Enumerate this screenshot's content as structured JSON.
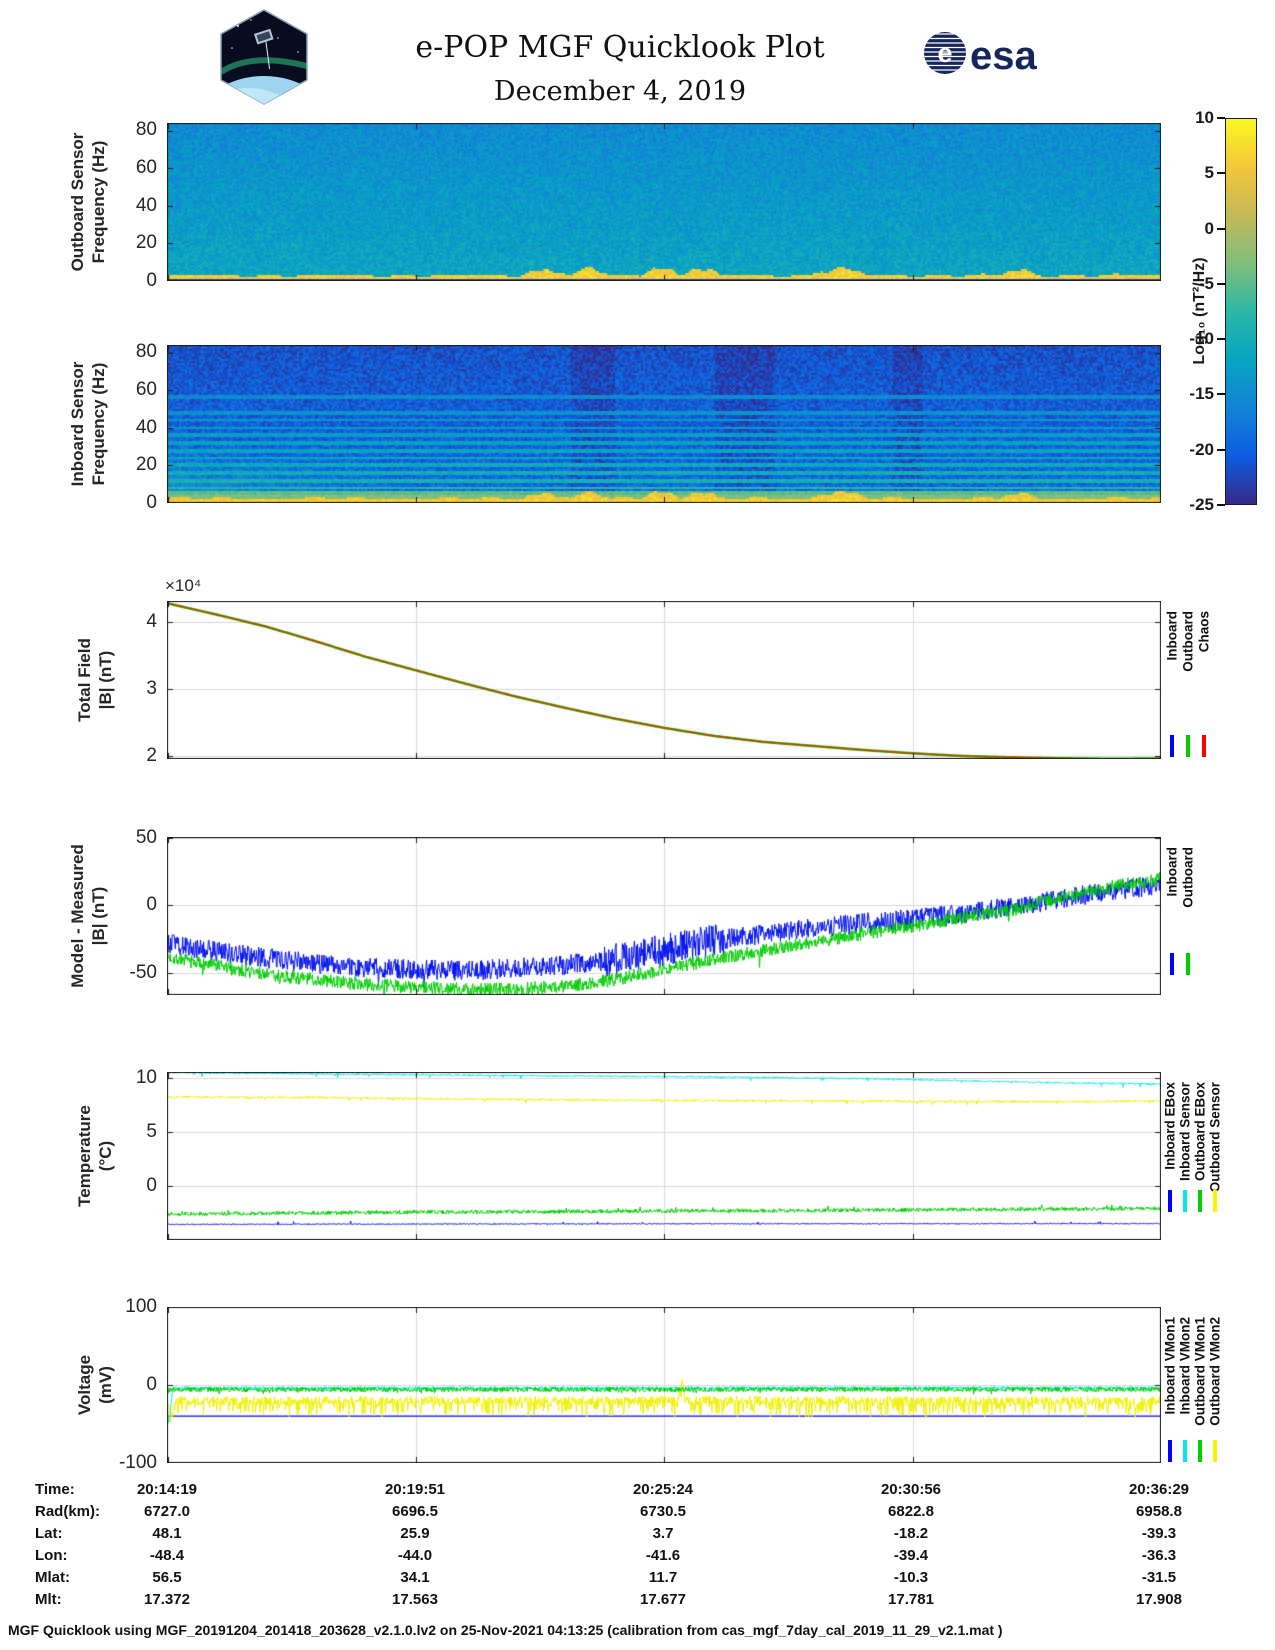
{
  "header": {
    "title_line1": "e-POP MGF Quicklook Plot",
    "title_line2": "December 4, 2019",
    "cassiope_label": "CASSIOPE",
    "esa_label": "esa",
    "esa_globe_letter": "e"
  },
  "colorbar": {
    "label": "Log₁₀ (nT²/Hz)",
    "ticks": [
      10,
      5,
      0,
      -5,
      -10,
      -15,
      -20,
      -25
    ],
    "range": [
      -25,
      10
    ],
    "gradient_stops": [
      [
        0,
        "#352a87"
      ],
      [
        0.125,
        "#0c5de2"
      ],
      [
        0.25,
        "#1384d6"
      ],
      [
        0.375,
        "#06a5c2"
      ],
      [
        0.5,
        "#2cb8a5"
      ],
      [
        0.625,
        "#7fbf7b"
      ],
      [
        0.75,
        "#c5b958"
      ],
      [
        0.875,
        "#f3c63a"
      ],
      [
        1,
        "#f9f921"
      ]
    ]
  },
  "chart_data": [
    {
      "id": "outboard-spectrogram",
      "type": "heatmap",
      "ylabel_line1": "Outboard Sensor",
      "ylabel_line2": "Frequency (Hz)",
      "yticks": [
        0,
        20,
        40,
        60,
        80
      ],
      "ylim": [
        0,
        84
      ],
      "seed": 11,
      "base_top": -15.2,
      "base_bottom": -11.6,
      "noise": 2.7,
      "band": {
        "top_freq": 3.0,
        "value": 5.6,
        "noise": 2.0
      },
      "band_waves": [
        [
          0.355,
          0.405,
          2.8
        ],
        [
          0.405,
          0.445,
          3.4
        ],
        [
          0.475,
          0.515,
          4.2
        ],
        [
          0.515,
          0.555,
          3.6
        ],
        [
          0.645,
          0.705,
          3.4
        ],
        [
          0.835,
          0.875,
          2.4
        ]
      ],
      "lines": [],
      "dark_bottom_freq": 0.7
    },
    {
      "id": "inboard-spectrogram",
      "type": "heatmap",
      "ylabel_line1": "Inboard Sensor",
      "ylabel_line2": "Frequency (Hz)",
      "yticks": [
        0,
        20,
        40,
        60,
        80
      ],
      "ylim": [
        0,
        84
      ],
      "seed": 23,
      "base_top": -21.6,
      "base_bottom": -18.4,
      "noise": 2.8,
      "band": {
        "top_freq": 2.4,
        "value": 5.4,
        "noise": 2.0
      },
      "band_waves": [
        [
          0.355,
          0.405,
          2.6
        ],
        [
          0.405,
          0.445,
          3.0
        ],
        [
          0.475,
          0.515,
          3.8
        ],
        [
          0.515,
          0.555,
          3.2
        ],
        [
          0.645,
          0.705,
          3.2
        ],
        [
          0.835,
          0.875,
          2.2
        ]
      ],
      "lines": [
        [
          3.5,
          -3
        ],
        [
          5.5,
          -5
        ],
        [
          8,
          -8.5
        ],
        [
          12,
          -10
        ],
        [
          16,
          -10.5
        ],
        [
          20,
          -11
        ],
        [
          24,
          -11.5
        ],
        [
          28,
          -12
        ],
        [
          32,
          -12.5
        ],
        [
          36,
          -13
        ],
        [
          40,
          -13.5
        ],
        [
          44,
          -14
        ],
        [
          48,
          -14.5
        ],
        [
          56,
          -15.5
        ]
      ],
      "left_patch": {
        "xmax": 0.22,
        "fmax": 32,
        "boost": 5.5
      },
      "dark_bands": [
        [
          0.405,
          0.45
        ],
        [
          0.55,
          0.61
        ],
        [
          0.73,
          0.76
        ]
      ],
      "dark_bottom_freq": 0.5
    },
    {
      "id": "total-field",
      "type": "line",
      "ylabel_line1": "Total Field",
      "ylabel_line2": "|B| (nT)",
      "exponent_label": "×10⁴",
      "yticks": [
        2,
        3,
        4
      ],
      "ylim": [
        1.955,
        4.313
      ],
      "series": [
        {
          "name": "Inboard",
          "color": "#0008f0",
          "width": 1,
          "seed": 3,
          "noise": 0,
          "points": [
            [
              0,
              4.28
            ],
            [
              0.05,
              4.11
            ],
            [
              0.1,
              3.93
            ],
            [
              0.15,
              3.71
            ],
            [
              0.2,
              3.48
            ],
            [
              0.25,
              3.28
            ],
            [
              0.3,
              3.08
            ],
            [
              0.35,
              2.89
            ],
            [
              0.4,
              2.72
            ],
            [
              0.45,
              2.56
            ],
            [
              0.5,
              2.42
            ],
            [
              0.55,
              2.3
            ],
            [
              0.6,
              2.21
            ],
            [
              0.65,
              2.15
            ],
            [
              0.7,
              2.09
            ],
            [
              0.75,
              2.04
            ],
            [
              0.8,
              2.0
            ],
            [
              0.85,
              1.98
            ],
            [
              0.9,
              1.965
            ],
            [
              0.95,
              1.958
            ],
            [
              1,
              1.962
            ]
          ]
        },
        {
          "name": "Outboard",
          "color": "#00cc00",
          "width": 2.6,
          "seed": 4,
          "noise": 0,
          "points": [
            [
              0,
              4.28
            ],
            [
              0.05,
              4.11
            ],
            [
              0.1,
              3.93
            ],
            [
              0.15,
              3.71
            ],
            [
              0.2,
              3.48
            ],
            [
              0.25,
              3.28
            ],
            [
              0.3,
              3.08
            ],
            [
              0.35,
              2.89
            ],
            [
              0.4,
              2.72
            ],
            [
              0.45,
              2.56
            ],
            [
              0.5,
              2.42
            ],
            [
              0.55,
              2.3
            ],
            [
              0.6,
              2.21
            ],
            [
              0.65,
              2.15
            ],
            [
              0.7,
              2.09
            ],
            [
              0.75,
              2.04
            ],
            [
              0.8,
              2.0
            ],
            [
              0.85,
              1.98
            ],
            [
              0.9,
              1.965
            ],
            [
              0.95,
              1.958
            ],
            [
              1,
              1.962
            ]
          ]
        },
        {
          "name": "Chaos",
          "color": "#e03000",
          "width": 1.4,
          "seed": 5,
          "noise": 0,
          "points": [
            [
              0,
              4.28
            ],
            [
              0.05,
              4.11
            ],
            [
              0.1,
              3.93
            ],
            [
              0.15,
              3.71
            ],
            [
              0.2,
              3.48
            ],
            [
              0.25,
              3.28
            ],
            [
              0.3,
              3.08
            ],
            [
              0.35,
              2.89
            ],
            [
              0.4,
              2.72
            ],
            [
              0.45,
              2.56
            ],
            [
              0.5,
              2.42
            ],
            [
              0.55,
              2.3
            ],
            [
              0.6,
              2.21
            ],
            [
              0.65,
              2.15
            ],
            [
              0.7,
              2.09
            ],
            [
              0.75,
              2.04
            ],
            [
              0.8,
              2.0
            ],
            [
              0.85,
              1.98
            ],
            [
              0.9,
              1.965
            ],
            [
              0.95,
              1.958
            ],
            [
              1,
              1.962
            ]
          ]
        }
      ],
      "legend": [
        {
          "label": "Inboard",
          "color": "#0000ff"
        },
        {
          "label": "Outboard",
          "color": "#00cc00"
        },
        {
          "label": "Chaos",
          "color": "#ff0000"
        }
      ]
    },
    {
      "id": "model-measured",
      "type": "line",
      "ylabel_line1": "Model - Measured",
      "ylabel_line2": "|B| (nT)",
      "yticks": [
        -50,
        0,
        50
      ],
      "ylim": [
        -66.3,
        50.7
      ],
      "series": [
        {
          "name": "Inboard",
          "color": "#0010ee",
          "width": 1,
          "seed": 6,
          "noise": 7.5,
          "noise_segments": [
            [
              0.44,
              0.56,
              12
            ]
          ],
          "spike_p": 0.004,
          "spike_amp": -13,
          "points": [
            [
              0,
              -28
            ],
            [
              0.05,
              -34
            ],
            [
              0.1,
              -39
            ],
            [
              0.15,
              -43
            ],
            [
              0.2,
              -46
            ],
            [
              0.25,
              -47.5
            ],
            [
              0.3,
              -48
            ],
            [
              0.35,
              -46.5
            ],
            [
              0.4,
              -44
            ],
            [
              0.45,
              -40
            ],
            [
              0.5,
              -33
            ],
            [
              0.55,
              -26
            ],
            [
              0.6,
              -21
            ],
            [
              0.65,
              -17
            ],
            [
              0.7,
              -13
            ],
            [
              0.75,
              -10
            ],
            [
              0.8,
              -6
            ],
            [
              0.85,
              -1
            ],
            [
              0.9,
              5
            ],
            [
              0.95,
              11
            ],
            [
              1,
              15
            ]
          ]
        },
        {
          "name": "Outboard",
          "color": "#00cc00",
          "width": 1,
          "seed": 7,
          "noise": 5,
          "spike_p": 0.004,
          "spike_amp": -10,
          "points": [
            [
              0,
              -38
            ],
            [
              0.05,
              -45
            ],
            [
              0.1,
              -51
            ],
            [
              0.15,
              -55
            ],
            [
              0.2,
              -58.5
            ],
            [
              0.25,
              -60.5
            ],
            [
              0.3,
              -62
            ],
            [
              0.35,
              -62
            ],
            [
              0.4,
              -60
            ],
            [
              0.45,
              -55
            ],
            [
              0.5,
              -47
            ],
            [
              0.55,
              -40
            ],
            [
              0.6,
              -33
            ],
            [
              0.65,
              -27
            ],
            [
              0.7,
              -21
            ],
            [
              0.75,
              -15
            ],
            [
              0.8,
              -9
            ],
            [
              0.85,
              -3
            ],
            [
              0.9,
              6
            ],
            [
              0.95,
              14
            ],
            [
              1,
              20
            ]
          ]
        }
      ],
      "legend": [
        {
          "label": "Inboard",
          "color": "#0000ff"
        },
        {
          "label": "Outboard",
          "color": "#00cc00"
        }
      ]
    },
    {
      "id": "temperature",
      "type": "line",
      "ylabel_line1": "Temperature",
      "ylabel_line2": "(°C)",
      "yticks": [
        0,
        5,
        10
      ],
      "ylim": [
        -5.0,
        10.56
      ],
      "series": [
        {
          "name": "Inboard EBox",
          "color": "#0008f0",
          "width": 1,
          "seed": 8,
          "noise": 0.05,
          "spike_p": 0.006,
          "spike_amp": 0.28,
          "points": [
            [
              0,
              -3.55
            ],
            [
              0.5,
              -3.5
            ],
            [
              1,
              -3.48
            ]
          ]
        },
        {
          "name": "Inboard Sensor",
          "color": "#00e8e8",
          "width": 1,
          "seed": 9,
          "noise": 0.08,
          "spike_p": 0.012,
          "spike_amp": -0.3,
          "points": [
            [
              0,
              10.5
            ],
            [
              0.1,
              10.42
            ],
            [
              0.25,
              10.3
            ],
            [
              0.4,
              10.2
            ],
            [
              0.55,
              10.1
            ],
            [
              0.7,
              9.95
            ],
            [
              0.8,
              9.75
            ],
            [
              0.9,
              9.55
            ],
            [
              1,
              9.45
            ]
          ]
        },
        {
          "name": "Outboard Sensor",
          "color": "#f0f000",
          "width": 1,
          "seed": 10,
          "noise": 0.1,
          "spike_p": 0.015,
          "spike_amp": -0.28,
          "points": [
            [
              0,
              8.25
            ],
            [
              0.15,
              8.2
            ],
            [
              0.3,
              8.05
            ],
            [
              0.45,
              7.95
            ],
            [
              0.6,
              7.9
            ],
            [
              0.75,
              7.85
            ],
            [
              0.9,
              7.82
            ],
            [
              1,
              7.88
            ]
          ]
        },
        {
          "name": "Outboard EBox",
          "color": "#00cc00",
          "width": 1,
          "seed": 12,
          "noise": 0.18,
          "spike_p": 0.01,
          "spike_amp": 0.35,
          "points": [
            [
              0,
              -2.6
            ],
            [
              0.2,
              -2.45
            ],
            [
              0.4,
              -2.35
            ],
            [
              0.6,
              -2.28
            ],
            [
              0.8,
              -2.18
            ],
            [
              1,
              -2.08
            ]
          ]
        }
      ],
      "legend": [
        {
          "label": "Inboard EBox",
          "color": "#0000ff"
        },
        {
          "label": "Inboard Sensor",
          "color": "#00e8e8"
        },
        {
          "label": "Outboard EBox",
          "color": "#00cc00"
        },
        {
          "label": "Outboard Sensor",
          "color": "#f5f500"
        }
      ]
    },
    {
      "id": "voltage",
      "type": "line",
      "ylabel_line1": "Voltage",
      "ylabel_line2": "(mV)",
      "yticks": [
        -100,
        0,
        100
      ],
      "ylim": [
        -100,
        100
      ],
      "series": [
        {
          "name": "Inboard VMon1",
          "color": "#0008f0",
          "width": 1.2,
          "seed": 13,
          "noise": 0,
          "points": [
            [
              0,
              -40
            ],
            [
              1,
              -40
            ]
          ]
        },
        {
          "name": "Inboard VMon2",
          "color": "#00e8e8",
          "width": 1,
          "seed": 14,
          "noise": 1.8,
          "spike_p": 0.02,
          "spike_amp": -5,
          "events": [
            [
              0.002,
              -45
            ]
          ],
          "points": [
            [
              0,
              -3.8
            ],
            [
              1,
              -3.6
            ]
          ]
        },
        {
          "name": "Outboard VMon2",
          "color": "#f0f000",
          "width": 1,
          "seed": 15,
          "noise": 5.5,
          "down_p": 0.3,
          "down_amp": 18,
          "events": [
            [
              0.004,
              -25
            ],
            [
              0.518,
              28
            ]
          ],
          "points": [
            [
              0,
              -20
            ],
            [
              1,
              -20
            ]
          ]
        },
        {
          "name": "Outboard VMon1",
          "color": "#00cc00",
          "width": 1,
          "seed": 16,
          "noise": 3,
          "spike_p": 0.02,
          "spike_amp": -4,
          "points": [
            [
              0,
              -6
            ],
            [
              1,
              -5.5
            ]
          ]
        }
      ],
      "legend": [
        {
          "label": "Inboard VMon1",
          "color": "#0000ff"
        },
        {
          "label": "Inboard VMon2",
          "color": "#00e8e8"
        },
        {
          "label": "Outboard VMon1",
          "color": "#00cc00"
        },
        {
          "label": "Outboard VMon2",
          "color": "#f5f500"
        }
      ]
    }
  ],
  "table": {
    "rows": [
      {
        "label": "Time:",
        "values": [
          "20:14:19",
          "20:19:51",
          "20:25:24",
          "20:30:56",
          "20:36:29"
        ]
      },
      {
        "label": "Rad(km):",
        "values": [
          "6727.0",
          "6696.5",
          "6730.5",
          "6822.8",
          "6958.8"
        ]
      },
      {
        "label": "Lat:",
        "values": [
          "48.1",
          "25.9",
          "3.7",
          "-18.2",
          "-39.3"
        ]
      },
      {
        "label": "Lon:",
        "values": [
          "-48.4",
          "-44.0",
          "-41.6",
          "-39.4",
          "-36.3"
        ]
      },
      {
        "label": "Mlat:",
        "values": [
          "56.5",
          "34.1",
          "11.7",
          "-10.3",
          "-31.5"
        ]
      },
      {
        "label": "Mlt:",
        "values": [
          "17.372",
          "17.563",
          "17.677",
          "17.781",
          "17.908"
        ]
      }
    ]
  },
  "footer": {
    "text": "MGF Quicklook using MGF_20191204_201418_203628_v2.1.0.lv2 on 25-Nov-2021 04:13:25 (calibration from cas_mgf_7day_cal_2019_11_29_v2.1.mat )"
  }
}
